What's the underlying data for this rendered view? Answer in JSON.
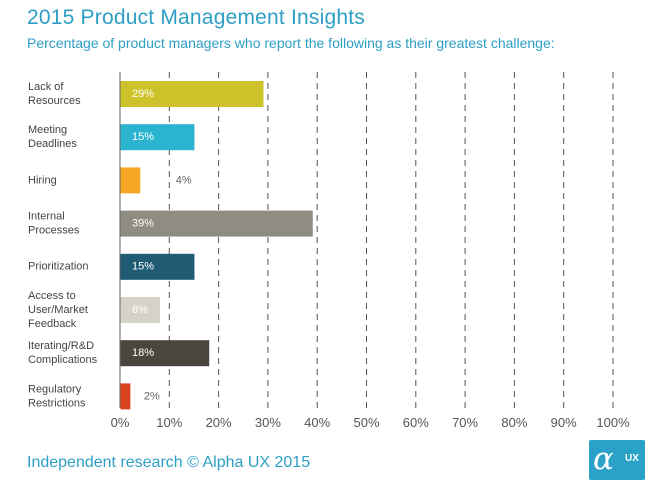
{
  "header": {
    "title": "2015 Product Management  Insights",
    "subtitle": "Percentage of product managers who report the following as their greatest challenge:"
  },
  "footer": {
    "credit": "Independent research © Alpha UX 2015",
    "logo_symbol": "α",
    "logo_text": "UX"
  },
  "colors": {
    "brand": "#2d9fc4"
  },
  "chart_data": {
    "type": "bar",
    "orientation": "horizontal",
    "title": "2015 Product Management  Insights",
    "subtitle": "Percentage of product managers who report the following as their greatest challenge:",
    "xlim": [
      0,
      100
    ],
    "grid": "dashed vertical",
    "x_ticks": [
      "0%",
      "10%",
      "20%",
      "30%",
      "40%",
      "50%",
      "60%",
      "70%",
      "80%",
      "90%",
      "100%"
    ],
    "categories": [
      [
        "Lack of",
        "Resources"
      ],
      [
        "Meeting",
        "Deadlines"
      ],
      [
        "Hiring"
      ],
      [
        "Internal",
        "Processes"
      ],
      [
        "Prioritization"
      ],
      [
        "Access to",
        "User/Market",
        "Feedback"
      ],
      [
        "Iterating/R&D",
        "Complications"
      ],
      [
        "Regulatory",
        "Restrictions"
      ]
    ],
    "values": [
      29,
      15,
      4,
      39,
      15,
      8,
      18,
      2
    ],
    "value_labels": [
      "29%",
      "15%",
      "4%",
      "39%",
      "15%",
      "8%",
      "18%",
      "2%"
    ],
    "colors": [
      "#cdc22a",
      "#2ab4cf",
      "#f5a623",
      "#8f8c81",
      "#1f5c73",
      "#d6d2c8",
      "#4a463d",
      "#d9441f"
    ]
  }
}
